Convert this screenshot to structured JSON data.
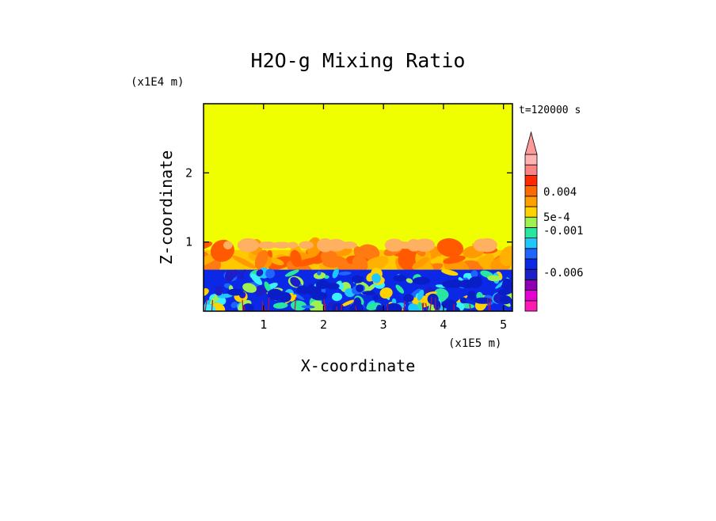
{
  "chart_data": {
    "type": "heatmap",
    "title": "H2O-g Mixing Ratio",
    "xlabel": "X-coordinate",
    "ylabel": "Z-coordinate",
    "x_unit": "(x1E5 m)",
    "y_unit": "(x1E4 m)",
    "time_label": "t=120000 s",
    "xlim": [
      0,
      5.15
    ],
    "ylim": [
      0,
      3.0
    ],
    "x_ticks": [
      1,
      2,
      3,
      4,
      5
    ],
    "x_tick_labels": [
      "1",
      "2",
      "3",
      "4",
      "5"
    ],
    "y_ticks": [
      1,
      2
    ],
    "y_tick_labels": [
      "1",
      "2"
    ],
    "regions": {
      "background_value": "above 0.004 (yellow)",
      "plume_layer_top": 1.0,
      "dense_layer_top": 0.6
    },
    "colorbar": {
      "colors": [
        "#ff1ab4",
        "#e600d2",
        "#8c00b4",
        "#1e1ec8",
        "#0a28e6",
        "#1e64ff",
        "#1ec8ff",
        "#28e6a0",
        "#a0f050",
        "#ffd200",
        "#ffa000",
        "#ff6a00",
        "#ff2a00",
        "#ff8282",
        "#ffb4b4"
      ],
      "labels": [
        {
          "text": "0.004",
          "value": 0.004
        },
        {
          "text": "5e-4",
          "value": 0.0005
        },
        {
          "text": "-0.001",
          "value": -0.001
        },
        {
          "text": "-0.006",
          "value": -0.006
        }
      ]
    }
  }
}
